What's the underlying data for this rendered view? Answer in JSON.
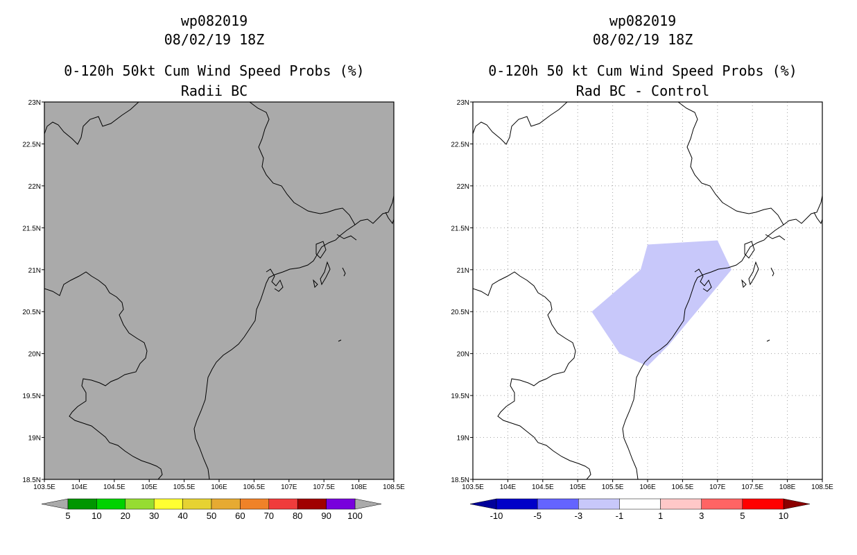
{
  "panels": [
    {
      "storm": "wp082019",
      "datetime": "08/02/19 18Z",
      "product": "0-120h 50kt Cum Wind Speed Probs (%)",
      "subtitle": "Radii BC",
      "background_color": "#aaaaaa",
      "grid": false,
      "colorbar": {
        "labels": [
          "5",
          "10",
          "20",
          "30",
          "40",
          "50",
          "60",
          "70",
          "80",
          "90",
          "100"
        ],
        "colors": [
          "#009600",
          "#00d200",
          "#96dc32",
          "#ffff32",
          "#e6d232",
          "#e6aa32",
          "#f08228",
          "#f03c3c",
          "#a00000",
          "#7800dc"
        ],
        "under_color": "#aaaaaa",
        "over_color": "#aaaaaa"
      }
    },
    {
      "storm": "wp082019",
      "datetime": "08/02/19 18Z",
      "product": "0-120h 50 kt Cum Wind Speed Probs (%)",
      "subtitle": "Rad BC - Control",
      "background_color": "#ffffff",
      "grid": true,
      "shaded_area": {
        "value_range": "-3 to -1",
        "color": "#c8c8fa",
        "outline_lonlat": [
          [
            105.2,
            20.5
          ],
          [
            105.9,
            21.0
          ],
          [
            106.0,
            21.3
          ],
          [
            107.0,
            21.35
          ],
          [
            107.2,
            21.0
          ],
          [
            106.6,
            20.4
          ],
          [
            106.3,
            20.1
          ],
          [
            106.0,
            19.85
          ],
          [
            105.6,
            20.0
          ],
          [
            105.2,
            20.5
          ]
        ]
      },
      "colorbar": {
        "labels": [
          "-10",
          "-5",
          "-3",
          "-1",
          "1",
          "3",
          "5",
          "10"
        ],
        "colors": [
          "#0000c8",
          "#6464ff",
          "#c8c8fa",
          "#ffffff",
          "#ffc8c8",
          "#ff6464",
          "#ff0000"
        ],
        "under_color": "#00009a",
        "over_color": "#8b0000"
      }
    }
  ],
  "map": {
    "lon_range": [
      103.5,
      108.5
    ],
    "lat_range": [
      18.5,
      23
    ],
    "lon_ticks": [
      "103.5E",
      "104E",
      "104.5E",
      "105E",
      "105.5E",
      "106E",
      "106.5E",
      "107E",
      "107.5E",
      "108E",
      "108.5E"
    ],
    "lat_ticks": [
      "18.5N",
      "19N",
      "19.5N",
      "20N",
      "20.5N",
      "21N",
      "21.5N",
      "22N",
      "22.5N",
      "23N"
    ]
  }
}
